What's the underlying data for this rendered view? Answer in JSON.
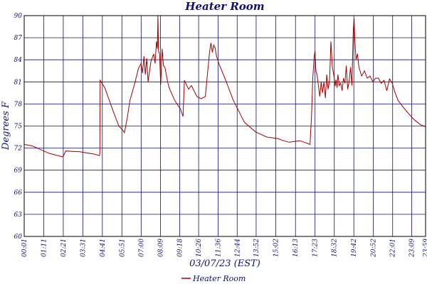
{
  "chart_data": {
    "type": "line",
    "title": "Heater Room",
    "xlabel": "03/07/23 (EST)",
    "ylabel": "Degrees F",
    "ylim": [
      60,
      90
    ],
    "yticks": [
      60,
      63,
      66,
      69,
      72,
      75,
      78,
      81,
      84,
      87,
      90
    ],
    "xlim": [
      1,
      1439
    ],
    "xticks": [
      {
        "label": "00:01",
        "minute": 1
      },
      {
        "label": "01:11",
        "minute": 71
      },
      {
        "label": "02:21",
        "minute": 141
      },
      {
        "label": "03:31",
        "minute": 211
      },
      {
        "label": "04:41",
        "minute": 281
      },
      {
        "label": "05:51",
        "minute": 351
      },
      {
        "label": "07:00",
        "minute": 420
      },
      {
        "label": "08:09",
        "minute": 489
      },
      {
        "label": "09:18",
        "minute": 558
      },
      {
        "label": "10:26",
        "minute": 626
      },
      {
        "label": "11:36",
        "minute": 696
      },
      {
        "label": "12:44",
        "minute": 764
      },
      {
        "label": "13:52",
        "minute": 832
      },
      {
        "label": "15:02",
        "minute": 902
      },
      {
        "label": "16:13",
        "minute": 973
      },
      {
        "label": "17:23",
        "minute": 1043
      },
      {
        "label": "18:32",
        "minute": 1112
      },
      {
        "label": "19:42",
        "minute": 1182
      },
      {
        "label": "20:52",
        "minute": 1252
      },
      {
        "label": "22:01",
        "minute": 1321
      },
      {
        "label": "23:09",
        "minute": 1389
      },
      {
        "label": "23:59",
        "minute": 1439
      }
    ],
    "grid": true,
    "legend_position": "bottom-center",
    "series": [
      {
        "name": "Heater Room",
        "color": "#a00000",
        "x_minutes": [
          1,
          30,
          60,
          90,
          120,
          140,
          150,
          200,
          250,
          270,
          272,
          273,
          290,
          320,
          340,
          355,
          360,
          370,
          380,
          395,
          405,
          410,
          420,
          425,
          430,
          435,
          440,
          445,
          455,
          465,
          470,
          475,
          478,
          480,
          482,
          486,
          490,
          495,
          500,
          505,
          510,
          515,
          520,
          540,
          555,
          560,
          570,
          575,
          590,
          600,
          620,
          635,
          650,
          665,
          670,
          675,
          680,
          685,
          690,
          700,
          720,
          750,
          790,
          830,
          870,
          910,
          930,
          950,
          990,
          1025,
          1030,
          1035,
          1040,
          1043,
          1046,
          1050,
          1055,
          1060,
          1065,
          1070,
          1075,
          1080,
          1085,
          1090,
          1095,
          1100,
          1105,
          1110,
          1115,
          1118,
          1122,
          1125,
          1130,
          1135,
          1140,
          1145,
          1150,
          1155,
          1160,
          1165,
          1170,
          1175,
          1180,
          1183,
          1185,
          1190,
          1195,
          1200,
          1210,
          1220,
          1230,
          1240,
          1250,
          1260,
          1270,
          1280,
          1290,
          1300,
          1310,
          1320,
          1330,
          1340,
          1360,
          1380,
          1400,
          1420,
          1439
        ],
        "values": [
          72.5,
          72.3,
          71.8,
          71.3,
          71.0,
          70.8,
          71.6,
          71.5,
          71.2,
          71.0,
          71.2,
          81.2,
          80.2,
          77.0,
          75.0,
          74.4,
          74.1,
          76.0,
          78.5,
          80.5,
          82.0,
          82.8,
          83.5,
          82.2,
          84.5,
          82.0,
          84.2,
          81.0,
          83.8,
          84.8,
          83.5,
          86.5,
          85.5,
          90.0,
          85.2,
          84.8,
          80.6,
          85.5,
          83.2,
          83.0,
          82.0,
          81.0,
          80.2,
          78.5,
          77.6,
          77.4,
          76.3,
          81.2,
          80.0,
          80.5,
          79.0,
          78.7,
          79.0,
          85.0,
          86.3,
          85.0,
          86.0,
          85.6,
          84.5,
          83.3,
          81.5,
          78.5,
          75.5,
          74.2,
          73.5,
          73.3,
          73.0,
          72.8,
          73.0,
          72.5,
          76.0,
          81.5,
          84.5,
          85.2,
          82.5,
          82.0,
          80.5,
          79.0,
          81.0,
          79.5,
          81.0,
          78.8,
          82.0,
          80.0,
          81.2,
          86.5,
          83.0,
          82.0,
          80.4,
          81.3,
          80.2,
          82.0,
          80.5,
          80.8,
          79.8,
          81.5,
          80.8,
          83.2,
          80.0,
          81.0,
          83.0,
          80.5,
          88.0,
          89.6,
          87.0,
          84.0,
          84.8,
          83.0,
          81.8,
          82.5,
          81.5,
          81.8,
          81.0,
          81.5,
          81.5,
          80.8,
          81.2,
          79.8,
          81.4,
          80.8,
          79.5,
          78.5,
          77.5,
          76.6,
          75.8,
          75.2,
          74.9
        ]
      }
    ]
  }
}
